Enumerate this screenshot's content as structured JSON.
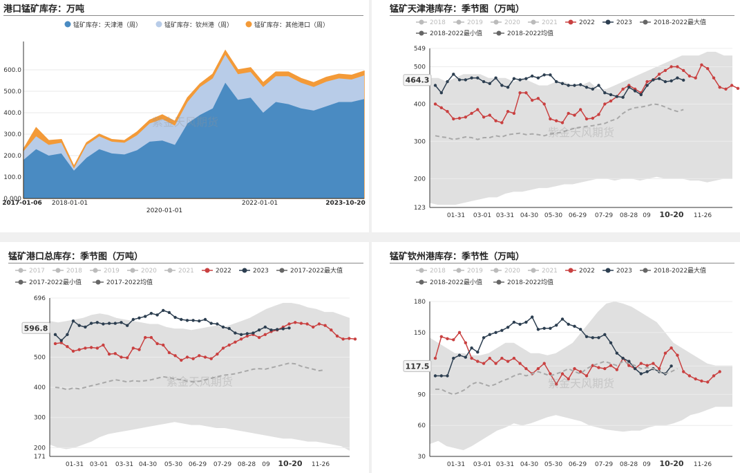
{
  "panels": {
    "p1": {
      "title": "港口锰矿库存：万吨"
    },
    "p2": {
      "title": "锰矿天津港库存：季节图（万吨）"
    },
    "p3": {
      "title": "锰矿港口总库存：季节图（万吨）"
    },
    "p4": {
      "title": "锰矿钦州港库存：季节性（万吨）"
    }
  },
  "watermark": "紫金天风期货",
  "chart_data": [
    {
      "type": "area",
      "title": "港口锰矿库存：万吨",
      "stacked": true,
      "ylim": [
        0,
        700
      ],
      "yticks": [
        "0.000",
        "100.0",
        "200.0",
        "300.0",
        "400.0",
        "500.0",
        "600.0"
      ],
      "xticks": [
        "2017-01-06",
        "2018-01-01",
        "2020-01-01",
        "2022-01-01",
        "2023-10-20"
      ],
      "legend": [
        "锰矿库存：天津港（周）",
        "锰矿库存：钦州港（周）",
        "锰矿库存：其他港口（周）"
      ],
      "colors": [
        "#4a8bc2",
        "#b8cce8",
        "#f39a38"
      ],
      "x": [
        "2017-01",
        "2017-04",
        "2017-07",
        "2017-10",
        "2018-01",
        "2018-04",
        "2018-07",
        "2018-10",
        "2019-01",
        "2019-04",
        "2019-07",
        "2019-10",
        "2020-01",
        "2020-04",
        "2020-07",
        "2020-10",
        "2021-01",
        "2021-04",
        "2021-07",
        "2021-10",
        "2022-01",
        "2022-04",
        "2022-07",
        "2022-10",
        "2023-01",
        "2023-04",
        "2023-07",
        "2023-10"
      ],
      "series": [
        {
          "name": "锰矿库存：天津港（周）",
          "values": [
            180,
            230,
            200,
            210,
            130,
            190,
            230,
            210,
            205,
            225,
            265,
            270,
            250,
            350,
            390,
            420,
            540,
            460,
            470,
            400,
            450,
            440,
            420,
            410,
            430,
            450,
            450,
            464
          ]
        },
        {
          "name": "锰矿库存：钦州港（周）",
          "values": [
            40,
            60,
            50,
            50,
            10,
            60,
            60,
            55,
            55,
            70,
            85,
            100,
            90,
            100,
            130,
            140,
            130,
            120,
            120,
            120,
            120,
            130,
            120,
            110,
            115,
            110,
            105,
            110
          ]
        },
        {
          "name": "锰矿库存：其他港口（周）",
          "values": [
            10,
            40,
            20,
            15,
            10,
            10,
            10,
            10,
            10,
            15,
            15,
            20,
            20,
            20,
            15,
            20,
            20,
            20,
            20,
            20,
            20,
            20,
            20,
            20,
            20,
            20,
            20,
            20
          ]
        }
      ]
    },
    {
      "type": "line",
      "title": "锰矿天津港库存：季节图（万吨）",
      "ylim": [
        123,
        549
      ],
      "yticks": [
        123,
        200,
        300,
        400,
        500,
        549
      ],
      "xticks": [
        "01-31",
        "03-01",
        "03-31",
        "04-30",
        "05-30",
        "06-29",
        "07-29",
        "08-28",
        "09",
        "10-20",
        "11-26"
      ],
      "legend": [
        "2018",
        "2019",
        "2020",
        "2021",
        "2022",
        "2023",
        "2018-2022最大值",
        "2018-2022最小值",
        "2018-2022均值"
      ],
      "current_label": "464.3",
      "band_max": [
        470,
        470,
        460,
        470,
        480,
        480,
        480,
        470,
        470,
        470,
        460,
        470,
        460,
        450,
        450,
        460,
        460,
        450,
        450,
        460,
        440,
        440,
        450,
        460,
        470,
        480,
        490,
        500,
        510,
        520,
        530,
        530,
        530,
        540,
        540,
        530,
        530
      ],
      "band_min": [
        135,
        130,
        130,
        130,
        135,
        140,
        145,
        150,
        150,
        160,
        165,
        165,
        170,
        175,
        175,
        180,
        185,
        185,
        190,
        195,
        200,
        200,
        195,
        200,
        200,
        195,
        200,
        205,
        200,
        200,
        200,
        195,
        195,
        190,
        195,
        200,
        200
      ],
      "series": [
        {
          "name": "2022",
          "color": "#c94040",
          "values": [
            400,
            390,
            380,
            360,
            362,
            365,
            375,
            385,
            365,
            370,
            355,
            350,
            380,
            375,
            430,
            430,
            410,
            415,
            400,
            360,
            355,
            350,
            375,
            370,
            385,
            360,
            362,
            372,
            400,
            408,
            420,
            440,
            450,
            440,
            430,
            460,
            465,
            480,
            490,
            500,
            500,
            490,
            475,
            470,
            505,
            495,
            470,
            445,
            440,
            450,
            442
          ]
        },
        {
          "name": "2023",
          "color": "#2c3e50",
          "values": [
            450,
            430,
            460,
            480,
            465,
            465,
            470,
            470,
            460,
            455,
            470,
            450,
            445,
            468,
            465,
            468,
            475,
            470,
            478,
            478,
            460,
            455,
            450,
            450,
            452,
            445,
            440,
            450,
            430,
            425,
            420,
            418,
            445,
            435,
            425,
            450,
            465,
            468,
            460,
            462,
            470,
            464
          ]
        },
        {
          "name": "2018-2022均值",
          "color": "#a8a8a8",
          "dashed": true,
          "values": [
            315,
            312,
            310,
            305,
            308,
            312,
            310,
            305,
            310,
            310,
            315,
            312,
            318,
            320,
            322,
            318,
            320,
            318,
            315,
            320,
            322,
            325,
            330,
            335,
            338,
            340,
            342,
            345,
            348,
            355,
            360,
            375,
            385,
            390,
            392,
            395,
            400,
            398,
            392,
            385,
            380,
            385
          ]
        }
      ]
    },
    {
      "type": "line",
      "title": "锰矿港口总库存：季节图（万吨）",
      "ylim": [
        171,
        696
      ],
      "yticks": [
        171,
        200,
        300,
        400,
        500,
        696
      ],
      "xticks": [
        "01-31",
        "03-01",
        "03-31",
        "04-30",
        "05-30",
        "06-29",
        "07-29",
        "08-28",
        "09",
        "10-20",
        "11-26"
      ],
      "legend": [
        "2017",
        "2018",
        "2019",
        "2020",
        "2021",
        "2022",
        "2023",
        "2017-2022最大值",
        "2017-2022最小值",
        "2017-2022均值"
      ],
      "current_label": "596.8",
      "band_max": [
        620,
        615,
        620,
        625,
        630,
        640,
        645,
        640,
        630,
        625,
        620,
        615,
        610,
        610,
        600,
        595,
        595,
        590,
        595,
        600,
        605,
        600,
        610,
        620,
        630,
        645,
        660,
        670,
        680,
        680,
        675,
        665,
        660,
        650,
        650,
        640,
        630
      ],
      "band_min": [
        210,
        200,
        195,
        200,
        210,
        220,
        235,
        245,
        250,
        255,
        260,
        265,
        270,
        275,
        280,
        285,
        280,
        275,
        275,
        270,
        265,
        265,
        260,
        255,
        250,
        245,
        240,
        235,
        230,
        230,
        225,
        220,
        220,
        215,
        210,
        205,
        190
      ],
      "series": [
        {
          "name": "2022",
          "color": "#c94040",
          "values": [
            545,
            548,
            535,
            520,
            525,
            530,
            532,
            530,
            540,
            510,
            512,
            500,
            498,
            530,
            525,
            565,
            565,
            545,
            540,
            515,
            505,
            490,
            500,
            495,
            505,
            500,
            495,
            510,
            530,
            540,
            550,
            560,
            570,
            575,
            565,
            575,
            585,
            590,
            600,
            610,
            615,
            612,
            610,
            600,
            610,
            605,
            590,
            570,
            560,
            562,
            560
          ]
        },
        {
          "name": "2023",
          "color": "#2c3e50",
          "values": [
            575,
            555,
            575,
            620,
            605,
            600,
            612,
            615,
            610,
            612,
            612,
            615,
            605,
            625,
            630,
            635,
            645,
            640,
            655,
            648,
            632,
            625,
            622,
            622,
            620,
            625,
            612,
            610,
            600,
            595,
            580,
            575,
            578,
            580,
            590,
            600,
            590,
            592,
            594,
            596.8
          ]
        },
        {
          "name": "2017-2022均值",
          "color": "#a8a8a8",
          "dashed": true,
          "values": [
            400,
            398,
            392,
            398,
            395,
            400,
            405,
            410,
            415,
            420,
            425,
            422,
            418,
            422,
            420,
            422,
            425,
            430,
            435,
            432,
            428,
            425,
            420,
            418,
            420,
            425,
            430,
            435,
            440,
            442,
            445,
            450,
            455,
            460,
            462,
            460,
            465,
            470,
            475,
            480,
            478,
            470,
            465,
            460,
            455,
            458
          ]
        }
      ]
    },
    {
      "type": "line",
      "title": "锰矿钦州港库存：季节性（万吨）",
      "ylim": [
        30,
        180
      ],
      "yticks": [
        30,
        60,
        90,
        117.5,
        150,
        180
      ],
      "xticks": [
        "01-31",
        "03-01",
        "03-31",
        "04-30",
        "05-30",
        "06-29",
        "07-29",
        "08-28",
        "09",
        "10-20",
        "11-26"
      ],
      "legend": [
        "2018",
        "2019",
        "2020",
        "2021",
        "2022",
        "2023",
        "2018-2022最大值",
        "2018-2022最小值",
        "2018-2022均值"
      ],
      "current_label": "117.5",
      "band_max": [
        145,
        140,
        135,
        130,
        130,
        128,
        128,
        130,
        135,
        140,
        140,
        135,
        130,
        130,
        128,
        130,
        135,
        140,
        150,
        160,
        170,
        178,
        180,
        178,
        175,
        170,
        165,
        160,
        150,
        140,
        135,
        130,
        125,
        120,
        118,
        118,
        118
      ],
      "band_min": [
        42,
        45,
        40,
        38,
        36,
        40,
        45,
        50,
        55,
        58,
        62,
        60,
        62,
        65,
        68,
        70,
        68,
        66,
        64,
        60,
        58,
        56,
        55,
        54,
        55,
        55,
        58,
        60,
        60,
        62,
        65,
        70,
        72,
        75,
        78,
        78,
        78
      ],
      "series": [
        {
          "name": "2022",
          "color": "#c94040",
          "values": [
            125,
            146,
            144,
            143,
            150,
            140,
            125,
            122,
            120,
            125,
            120,
            125,
            122,
            125,
            120,
            115,
            110,
            115,
            120,
            110,
            100,
            110,
            105,
            115,
            112,
            108,
            118,
            116,
            115,
            118,
            114,
            125,
            118,
            115,
            120,
            118,
            120,
            115,
            130,
            135,
            128,
            112,
            108,
            105,
            103,
            102,
            108,
            112
          ]
        },
        {
          "name": "2023",
          "color": "#2c3e50",
          "values": [
            108,
            108,
            108,
            125,
            128,
            126,
            135,
            131,
            145,
            148,
            150,
            152,
            155,
            160,
            158,
            160,
            165,
            153,
            154,
            154,
            157,
            163,
            158,
            156,
            153,
            146,
            145,
            145,
            148,
            140,
            130,
            125,
            122,
            115,
            110,
            112,
            115,
            112,
            110,
            117.5
          ]
        },
        {
          "name": "2018-2022均值",
          "color": "#a8a8a8",
          "dashed": true,
          "values": [
            95,
            95,
            92,
            90,
            92,
            95,
            100,
            102,
            100,
            98,
            100,
            103,
            105,
            108,
            110,
            108,
            110,
            112,
            110,
            108,
            110,
            112,
            115,
            112,
            110,
            115,
            118,
            120,
            122,
            120,
            118,
            122,
            120,
            118,
            115,
            116,
            115,
            112,
            110,
            112,
            115
          ]
        }
      ]
    }
  ]
}
